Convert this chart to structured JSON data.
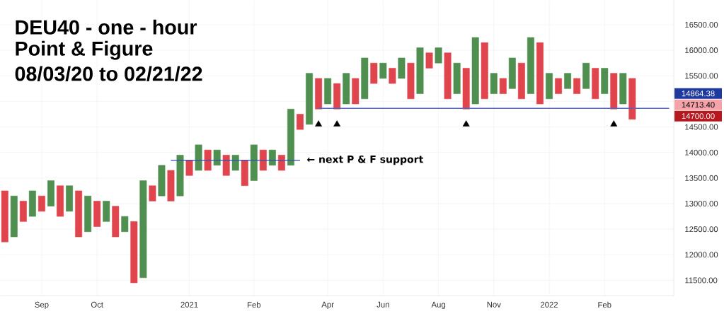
{
  "chart_data": {
    "type": "bar",
    "title": "DEU40 - one - hour",
    "subtitle": "Point & Figure",
    "annotations": [
      "08/03/20 to 02/21/22",
      "← next P & F support",
      "14864.38",
      "14713.40",
      "14700.00"
    ],
    "categories": [
      null,
      null,
      null,
      null,
      "Sep",
      null,
      null,
      null,
      null,
      null,
      "Oct",
      null,
      null,
      null,
      null,
      null,
      null,
      null,
      null,
      null,
      "2021",
      null,
      null,
      null,
      null,
      null,
      null,
      "Feb",
      null,
      null,
      null,
      null,
      null,
      null,
      null,
      "Apr",
      null,
      null,
      null,
      null,
      null,
      "Jun",
      null,
      null,
      null,
      null,
      null,
      "Aug",
      null,
      null,
      null,
      null,
      null,
      "Nov",
      null,
      null,
      null,
      null,
      null,
      "2022",
      null,
      null,
      null,
      null,
      null,
      "Feb",
      null,
      null,
      null,
      null,
      null,
      null,
      null
    ],
    "series": [
      {
        "values": [
          1000,
          800,
          400,
          500,
          300,
          500,
          600,
          500,
          900,
          700,
          500,
          400,
          600,
          300,
          1200,
          1900,
          300,
          600,
          600,
          800,
          300,
          500,
          400,
          300,
          400,
          300,
          500,
          700,
          400,
          300,
          300,
          1100,
          300,
          1000,
          600,
          500,
          500,
          600,
          500,
          800,
          400,
          300,
          300,
          400,
          700,
          900,
          300,
          300,
          900,
          600,
          800,
          1300,
          1100,
          400,
          300,
          600,
          700,
          1100,
          1200,
          500,
          300,
          300,
          300,
          500,
          600,
          500,
          700,
          600,
          800,
          null,
          null,
          null,
          null
        ],
        "base": [
          12250,
          12350,
          12650,
          12750,
          12850,
          12950,
          12750,
          12850,
          12350,
          12450,
          12550,
          12650,
          12350,
          12450,
          11450,
          11550,
          13050,
          13150,
          13050,
          13150,
          13550,
          13650,
          13650,
          13750,
          13550,
          13650,
          13350,
          13450,
          13650,
          13750,
          13650,
          13750,
          14450,
          14550,
          14850,
          14950,
          14850,
          14950,
          14950,
          15050,
          15350,
          15450,
          15350,
          15450,
          15050,
          15150,
          15650,
          15750,
          15050,
          15150,
          14850,
          14950,
          15050,
          15150,
          15150,
          15250,
          15050,
          15150,
          14950,
          15050,
          15150,
          15250,
          15150,
          15250,
          15050,
          15150,
          14850,
          14950,
          14650,
          null,
          null,
          null,
          null
        ],
        "colors": [
          "#e0454d",
          "#4f8f4f",
          "#e0454d",
          "#4f8f4f",
          "#e0454d",
          "#4f8f4f",
          "#e0454d",
          "#4f8f4f",
          "#e0454d",
          "#4f8f4f",
          "#e0454d",
          "#4f8f4f",
          "#e0454d",
          "#4f8f4f",
          "#e0454d",
          "#4f8f4f",
          "#e0454d",
          "#4f8f4f",
          "#e0454d",
          "#4f8f4f",
          "#e0454d",
          "#4f8f4f",
          "#e0454d",
          "#4f8f4f",
          "#e0454d",
          "#4f8f4f",
          "#e0454d",
          "#4f8f4f",
          "#e0454d",
          "#4f8f4f",
          "#e0454d",
          "#4f8f4f",
          "#e0454d",
          "#4f8f4f",
          "#e0454d",
          "#4f8f4f",
          "#e0454d",
          "#4f8f4f",
          "#e0454d",
          "#4f8f4f",
          "#e0454d",
          "#4f8f4f",
          "#e0454d",
          "#4f8f4f",
          "#e0454d",
          "#4f8f4f",
          "#e0454d",
          "#4f8f4f",
          "#e0454d",
          "#4f8f4f",
          "#e0454d",
          "#4f8f4f",
          "#e0454d",
          "#4f8f4f",
          "#e0454d",
          "#4f8f4f",
          "#e0454d",
          "#4f8f4f",
          "#e0454d",
          "#4f8f4f",
          "#e0454d",
          "#4f8f4f",
          "#e0454d",
          "#4f8f4f",
          "#e0454d",
          "#4f8f4f",
          "#e0454d",
          "#4f8f4f",
          "#e0454d",
          null,
          null,
          null,
          null
        ]
      },
      {
        "type": "line",
        "color": "#2e4fb5",
        "values": [
          null,
          null,
          null,
          null,
          null,
          null,
          null,
          null,
          null,
          null,
          null,
          null,
          null,
          null,
          null,
          null,
          null,
          null,
          13850,
          13850,
          13850,
          13850,
          13850,
          13850,
          13850,
          13850,
          13850,
          13850,
          13850,
          13850,
          13850,
          13850,
          13850,
          null,
          null,
          null,
          null,
          null,
          null,
          null,
          null,
          null,
          null,
          null,
          null,
          null,
          null,
          null,
          null,
          null,
          null,
          null,
          null,
          null,
          null,
          null,
          null,
          null,
          null,
          null,
          null,
          null,
          null,
          null,
          null,
          null,
          null,
          null,
          null,
          null,
          null,
          null,
          null
        ]
      },
      {
        "type": "line",
        "color": "#5565c5",
        "values": [
          null,
          null,
          null,
          null,
          null,
          null,
          null,
          null,
          null,
          null,
          null,
          null,
          null,
          null,
          null,
          null,
          null,
          null,
          null,
          null,
          null,
          null,
          null,
          null,
          null,
          null,
          null,
          null,
          null,
          null,
          null,
          null,
          null,
          null,
          14864.38,
          14864.38,
          14864.38,
          14864.38,
          14864.38,
          14864.38,
          14864.38,
          14864.38,
          14864.38,
          14864.38,
          14864.38,
          14864.38,
          14864.38,
          14864.38,
          14864.38,
          14864.38,
          14864.38,
          14864.38,
          14864.38,
          14864.38,
          14864.38,
          14864.38,
          14864.38,
          14864.38,
          14864.38,
          14864.38,
          14864.38,
          14864.38,
          14864.38,
          14864.38,
          14864.38,
          14864.38,
          14864.38,
          14864.38,
          14864.38,
          14864.38,
          14864.38,
          14864.38,
          14864.38
        ]
      },
      {
        "type": "scatter",
        "marker": "triangle",
        "color": "#000000",
        "values": [
          null,
          null,
          null,
          null,
          null,
          null,
          null,
          null,
          null,
          null,
          null,
          null,
          null,
          null,
          null,
          null,
          null,
          null,
          null,
          null,
          null,
          null,
          null,
          null,
          null,
          null,
          null,
          null,
          null,
          null,
          null,
          null,
          null,
          null,
          14550,
          null,
          14550,
          null,
          null,
          null,
          null,
          null,
          null,
          null,
          null,
          null,
          null,
          null,
          null,
          null,
          14550,
          null,
          null,
          null,
          null,
          null,
          null,
          null,
          null,
          null,
          null,
          null,
          null,
          null,
          null,
          null,
          14550,
          null,
          null,
          null,
          null,
          null,
          null
        ]
      }
    ],
    "ylim": [
      11200,
      16980
    ],
    "yticks": [
      {
        "value": 11500,
        "label": "11500.00"
      },
      {
        "value": 12000,
        "label": "12000.00"
      },
      {
        "value": 12500,
        "label": "12500.00"
      },
      {
        "value": 13000,
        "label": "13000.00"
      },
      {
        "value": 13500,
        "label": "13500.00"
      },
      {
        "value": 14000,
        "label": "14000.00"
      },
      {
        "value": 14500,
        "label": "14500.00"
      },
      {
        "value": 15000,
        "label": null
      },
      {
        "value": 15500,
        "label": "15500.00"
      },
      {
        "value": 16000,
        "label": "16000.00"
      },
      {
        "value": 16500,
        "label": "16500.00"
      }
    ],
    "grid": true
  }
}
